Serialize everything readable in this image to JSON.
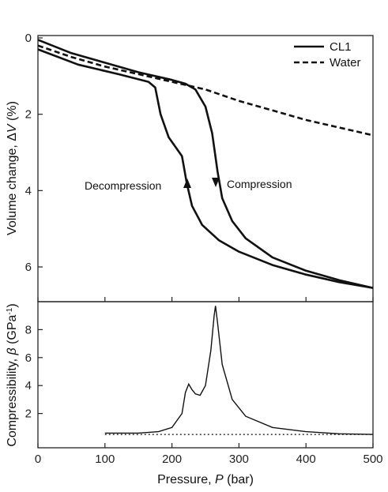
{
  "chart_data": [
    {
      "type": "line",
      "xlabel_text": "Pressure, ",
      "xlabel_var": "P",
      "xlabel_unit": " (bar)",
      "ylabel_text": "Volume change, Δ",
      "ylabel_var": "V",
      "ylabel_unit": " (%)",
      "xlim": [
        0,
        500
      ],
      "ylim": [
        0,
        6.6
      ],
      "y_inverted": true,
      "x_ticks": [
        0,
        100,
        200,
        300,
        400,
        500
      ],
      "y_ticks": [
        0,
        2,
        4,
        6
      ],
      "legend_position": "top-right",
      "series": [
        {
          "name": "CL1",
          "style": "solid",
          "branch": "compression",
          "points": [
            [
              0,
              0.05
            ],
            [
              50,
              0.4
            ],
            [
              100,
              0.65
            ],
            [
              150,
              0.9
            ],
            [
              200,
              1.1
            ],
            [
              220,
              1.2
            ],
            [
              235,
              1.35
            ],
            [
              250,
              1.8
            ],
            [
              260,
              2.5
            ],
            [
              268,
              3.5
            ],
            [
              275,
              4.2
            ],
            [
              290,
              4.8
            ],
            [
              310,
              5.25
            ],
            [
              350,
              5.75
            ],
            [
              400,
              6.1
            ],
            [
              450,
              6.35
            ],
            [
              500,
              6.55
            ]
          ]
        },
        {
          "name": "CL1",
          "style": "solid",
          "branch": "decompression",
          "points": [
            [
              500,
              6.55
            ],
            [
              450,
              6.4
            ],
            [
              400,
              6.2
            ],
            [
              350,
              5.95
            ],
            [
              300,
              5.6
            ],
            [
              270,
              5.3
            ],
            [
              245,
              4.9
            ],
            [
              230,
              4.4
            ],
            [
              222,
              3.8
            ],
            [
              215,
              3.1
            ],
            [
              195,
              2.6
            ],
            [
              183,
              2.0
            ],
            [
              175,
              1.3
            ],
            [
              165,
              1.15
            ],
            [
              120,
              0.95
            ],
            [
              60,
              0.7
            ],
            [
              0,
              0.3
            ]
          ]
        },
        {
          "name": "Water",
          "style": "dashed",
          "points": [
            [
              0,
              0.2
            ],
            [
              50,
              0.5
            ],
            [
              100,
              0.75
            ],
            [
              150,
              0.95
            ],
            [
              200,
              1.15
            ],
            [
              250,
              1.35
            ],
            [
              300,
              1.65
            ],
            [
              350,
              1.9
            ],
            [
              400,
              2.15
            ],
            [
              450,
              2.35
            ],
            [
              500,
              2.55
            ]
          ]
        }
      ],
      "annotations": [
        {
          "text": "Decompression",
          "at": [
            222,
            3.8
          ],
          "arrow": "up"
        },
        {
          "text": "Compression",
          "at": [
            268,
            3.5
          ],
          "arrow": "down"
        }
      ]
    },
    {
      "type": "line",
      "xlabel_text": "Pressure, ",
      "xlabel_var": "P",
      "xlabel_unit": " (bar)",
      "ylabel_text": "Compressibility, ",
      "ylabel_var": "β",
      "ylabel_unit": " (GPa",
      "ylabel_sup": "-1",
      "ylabel_end": ")",
      "xlim": [
        0,
        500
      ],
      "ylim": [
        0,
        10
      ],
      "x_ticks": [
        0,
        100,
        200,
        300,
        400,
        500
      ],
      "y_ticks": [
        2,
        4,
        6,
        8
      ],
      "series": [
        {
          "style": "solid",
          "points": [
            [
              100,
              0.6
            ],
            [
              150,
              0.6
            ],
            [
              180,
              0.7
            ],
            [
              200,
              1.0
            ],
            [
              215,
              2.0
            ],
            [
              220,
              3.5
            ],
            [
              225,
              4.1
            ],
            [
              230,
              3.7
            ],
            [
              235,
              3.4
            ],
            [
              242,
              3.3
            ],
            [
              250,
              4.0
            ],
            [
              258,
              6.5
            ],
            [
              263,
              9.0
            ],
            [
              265,
              9.7
            ],
            [
              268,
              8.5
            ],
            [
              275,
              5.5
            ],
            [
              290,
              3.0
            ],
            [
              310,
              1.8
            ],
            [
              350,
              1.0
            ],
            [
              400,
              0.7
            ],
            [
              450,
              0.55
            ],
            [
              500,
              0.5
            ]
          ]
        },
        {
          "style": "dotted",
          "points": [
            [
              100,
              0.5
            ],
            [
              500,
              0.5
            ]
          ]
        }
      ]
    }
  ],
  "legend": {
    "cl1": "CL1",
    "water": "Water"
  },
  "colors": {
    "line": "#111111",
    "axis": "#222222"
  }
}
